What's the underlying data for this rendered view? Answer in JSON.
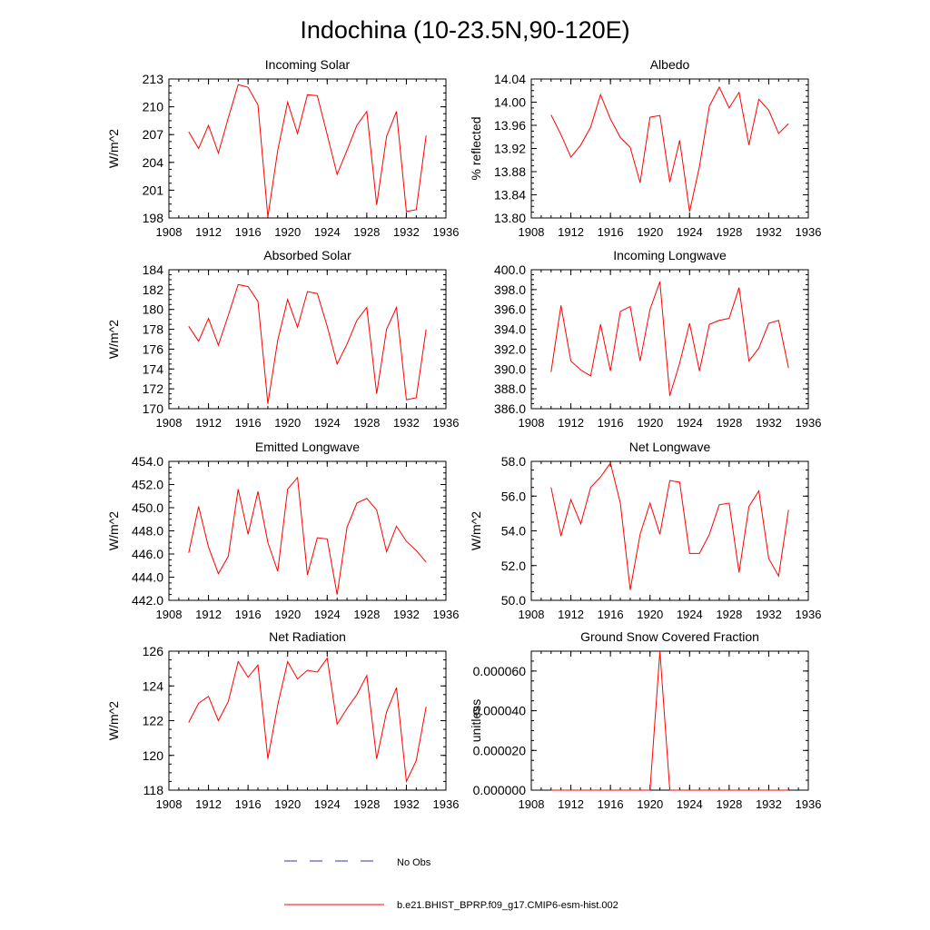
{
  "title": "Indochina (10-23.5N,90-120E)",
  "colors": {
    "model": "#ff0000",
    "obs": "#3333aa",
    "axis": "#000000"
  },
  "legend": [
    {
      "label": "No Obs",
      "style": "dashed",
      "color": "#3333aa"
    },
    {
      "label": "b.e21.BHIST_BPRP.f09_g17.CMIP6-esm-hist.002",
      "style": "solid",
      "color": "#ff0000"
    }
  ],
  "chart_data": [
    {
      "type": "line",
      "title": "Incoming Solar",
      "ylabel": "W/m^2",
      "xlim": [
        1908,
        1936
      ],
      "ylim": [
        198,
        213
      ],
      "xticks": [
        1908,
        1912,
        1916,
        1920,
        1924,
        1928,
        1932,
        1936
      ],
      "yticks": [
        198,
        201,
        204,
        207,
        210,
        213
      ],
      "ytick_labels": [
        "198",
        "201",
        "204",
        "207",
        "210",
        "213"
      ],
      "x": [
        1910,
        1911,
        1912,
        1913,
        1914,
        1915,
        1916,
        1917,
        1918,
        1919,
        1920,
        1921,
        1922,
        1923,
        1924,
        1925,
        1926,
        1927,
        1928,
        1929,
        1930,
        1931,
        1932,
        1933,
        1934
      ],
      "series": [
        {
          "name": "b.e21.BHIST_BPRP.f09_g17.CMIP6-esm-hist.002",
          "values": [
            207.3,
            205.5,
            208.0,
            205.0,
            208.8,
            212.4,
            212.1,
            210.2,
            198.1,
            205.3,
            210.5,
            207.1,
            211.3,
            211.2,
            207.0,
            202.7,
            205.3,
            208.0,
            209.5,
            199.4,
            206.8,
            209.5,
            198.7,
            198.9,
            206.9
          ]
        }
      ]
    },
    {
      "type": "line",
      "title": "Albedo",
      "ylabel": "% reflected",
      "xlim": [
        1908,
        1936
      ],
      "ylim": [
        13.8,
        14.04
      ],
      "xticks": [
        1908,
        1912,
        1916,
        1920,
        1924,
        1928,
        1932,
        1936
      ],
      "yticks": [
        13.8,
        13.84,
        13.88,
        13.92,
        13.96,
        14.0,
        14.04
      ],
      "ytick_labels": [
        "13.80",
        "13.84",
        "13.88",
        "13.92",
        "13.96",
        "14.00",
        "14.04"
      ],
      "x": [
        1910,
        1911,
        1912,
        1913,
        1914,
        1915,
        1916,
        1917,
        1918,
        1919,
        1920,
        1921,
        1922,
        1923,
        1924,
        1925,
        1926,
        1927,
        1928,
        1929,
        1930,
        1931,
        1932,
        1933,
        1934
      ],
      "series": [
        {
          "name": "b.e21.BHIST_BPRP.f09_g17.CMIP6-esm-hist.002",
          "values": [
            13.978,
            13.944,
            13.905,
            13.926,
            13.957,
            14.013,
            13.971,
            13.939,
            13.922,
            13.861,
            13.974,
            13.977,
            13.862,
            13.934,
            13.811,
            13.889,
            13.993,
            14.026,
            13.99,
            14.017,
            13.926,
            14.005,
            13.986,
            13.946,
            13.963
          ]
        }
      ]
    },
    {
      "type": "line",
      "title": "Absorbed Solar",
      "ylabel": "W/m^2",
      "xlim": [
        1908,
        1936
      ],
      "ylim": [
        170,
        184
      ],
      "xticks": [
        1908,
        1912,
        1916,
        1920,
        1924,
        1928,
        1932,
        1936
      ],
      "yticks": [
        170,
        172,
        174,
        176,
        178,
        180,
        182,
        184
      ],
      "ytick_labels": [
        "170",
        "172",
        "174",
        "176",
        "178",
        "180",
        "182",
        "184"
      ],
      "x": [
        1910,
        1911,
        1912,
        1913,
        1914,
        1915,
        1916,
        1917,
        1918,
        1919,
        1920,
        1921,
        1922,
        1923,
        1924,
        1925,
        1926,
        1927,
        1928,
        1929,
        1930,
        1931,
        1932,
        1933,
        1934
      ],
      "series": [
        {
          "name": "b.e21.BHIST_BPRP.f09_g17.CMIP6-esm-hist.002",
          "values": [
            178.3,
            176.8,
            179.1,
            176.4,
            179.4,
            182.5,
            182.3,
            180.8,
            170.5,
            176.9,
            181.0,
            178.2,
            181.8,
            181.6,
            178.3,
            174.5,
            176.5,
            178.9,
            180.2,
            171.5,
            178.0,
            180.2,
            170.9,
            171.1,
            178.0
          ]
        }
      ]
    },
    {
      "type": "line",
      "title": "Incoming Longwave",
      "ylabel": "",
      "xlim": [
        1908,
        1936
      ],
      "ylim": [
        386.0,
        400.0
      ],
      "xticks": [
        1908,
        1912,
        1916,
        1920,
        1924,
        1928,
        1932,
        1936
      ],
      "yticks": [
        386.0,
        388.0,
        390.0,
        392.0,
        394.0,
        396.0,
        398.0,
        400.0
      ],
      "ytick_labels": [
        "386.0",
        "388.0",
        "390.0",
        "392.0",
        "394.0",
        "396.0",
        "398.0",
        "400.0"
      ],
      "x": [
        1910,
        1911,
        1912,
        1913,
        1914,
        1915,
        1916,
        1917,
        1918,
        1919,
        1920,
        1921,
        1922,
        1923,
        1924,
        1925,
        1926,
        1927,
        1928,
        1929,
        1930,
        1931,
        1932,
        1933,
        1934
      ],
      "series": [
        {
          "name": "b.e21.BHIST_BPRP.f09_g17.CMIP6-esm-hist.002",
          "values": [
            389.7,
            396.4,
            390.8,
            389.9,
            389.3,
            394.5,
            389.8,
            395.8,
            396.3,
            390.8,
            396.0,
            398.8,
            387.3,
            390.6,
            394.6,
            389.8,
            394.5,
            394.9,
            395.1,
            398.2,
            390.8,
            392.1,
            394.6,
            394.9,
            390.1
          ]
        }
      ]
    },
    {
      "type": "line",
      "title": "Emitted Longwave",
      "ylabel": "W/m^2",
      "xlim": [
        1908,
        1936
      ],
      "ylim": [
        442.0,
        454.0
      ],
      "xticks": [
        1908,
        1912,
        1916,
        1920,
        1924,
        1928,
        1932,
        1936
      ],
      "yticks": [
        442.0,
        444.0,
        446.0,
        448.0,
        450.0,
        452.0,
        454.0
      ],
      "ytick_labels": [
        "442.0",
        "444.0",
        "446.0",
        "448.0",
        "450.0",
        "452.0",
        "454.0"
      ],
      "x": [
        1910,
        1911,
        1912,
        1913,
        1914,
        1915,
        1916,
        1917,
        1918,
        1919,
        1920,
        1921,
        1922,
        1923,
        1924,
        1925,
        1926,
        1927,
        1928,
        1929,
        1930,
        1931,
        1932,
        1933,
        1934
      ],
      "series": [
        {
          "name": "b.e21.BHIST_BPRP.f09_g17.CMIP6-esm-hist.002",
          "values": [
            446.1,
            450.1,
            446.6,
            444.3,
            445.8,
            451.6,
            447.7,
            451.4,
            447.0,
            444.5,
            451.6,
            452.6,
            444.2,
            447.4,
            447.3,
            442.5,
            448.3,
            450.4,
            450.8,
            449.8,
            446.2,
            448.4,
            447.1,
            446.3,
            445.3
          ]
        }
      ]
    },
    {
      "type": "line",
      "title": "Net Longwave",
      "ylabel": "W/m^2",
      "xlim": [
        1908,
        1936
      ],
      "ylim": [
        50.0,
        58.0
      ],
      "xticks": [
        1908,
        1912,
        1916,
        1920,
        1924,
        1928,
        1932,
        1936
      ],
      "yticks": [
        50.0,
        52.0,
        54.0,
        56.0,
        58.0
      ],
      "ytick_labels": [
        "50.0",
        "52.0",
        "54.0",
        "56.0",
        "58.0"
      ],
      "x": [
        1910,
        1911,
        1912,
        1913,
        1914,
        1915,
        1916,
        1917,
        1918,
        1919,
        1920,
        1921,
        1922,
        1923,
        1924,
        1925,
        1926,
        1927,
        1928,
        1929,
        1930,
        1931,
        1932,
        1933,
        1934
      ],
      "series": [
        {
          "name": "b.e21.BHIST_BPRP.f09_g17.CMIP6-esm-hist.002",
          "values": [
            56.5,
            53.7,
            55.8,
            54.4,
            56.5,
            57.1,
            57.9,
            55.6,
            50.6,
            53.8,
            55.6,
            53.8,
            56.9,
            56.8,
            52.7,
            52.7,
            53.8,
            55.5,
            55.6,
            51.6,
            55.4,
            56.3,
            52.4,
            51.4,
            55.2
          ]
        }
      ]
    },
    {
      "type": "line",
      "title": "Net Radiation",
      "ylabel": "W/m^2",
      "xlim": [
        1908,
        1936
      ],
      "ylim": [
        118,
        126
      ],
      "xticks": [
        1908,
        1912,
        1916,
        1920,
        1924,
        1928,
        1932,
        1936
      ],
      "yticks": [
        118,
        120,
        122,
        124,
        126
      ],
      "ytick_labels": [
        "118",
        "120",
        "122",
        "124",
        "126"
      ],
      "x": [
        1910,
        1911,
        1912,
        1913,
        1914,
        1915,
        1916,
        1917,
        1918,
        1919,
        1920,
        1921,
        1922,
        1923,
        1924,
        1925,
        1926,
        1927,
        1928,
        1929,
        1930,
        1931,
        1932,
        1933,
        1934
      ],
      "series": [
        {
          "name": "b.e21.BHIST_BPRP.f09_g17.CMIP6-esm-hist.002",
          "values": [
            121.9,
            123.0,
            123.4,
            122.0,
            123.1,
            125.4,
            124.5,
            125.2,
            119.8,
            122.9,
            125.4,
            124.4,
            124.9,
            124.8,
            125.6,
            121.8,
            122.7,
            123.5,
            124.6,
            119.8,
            122.5,
            123.9,
            118.5,
            119.7,
            122.8
          ]
        }
      ]
    },
    {
      "type": "line",
      "title": "Ground Snow Covered Fraction",
      "ylabel": "unitless",
      "xlim": [
        1908,
        1936
      ],
      "ylim": [
        0,
        7e-05
      ],
      "xticks": [
        1908,
        1912,
        1916,
        1920,
        1924,
        1928,
        1932,
        1936
      ],
      "yticks": [
        0,
        2e-05,
        4e-05,
        6e-05
      ],
      "ytick_labels": [
        "0.000000",
        "0.000020",
        "0.000040",
        "0.000060"
      ],
      "x": [
        1910,
        1911,
        1912,
        1913,
        1914,
        1915,
        1916,
        1917,
        1918,
        1919,
        1920,
        1921,
        1922,
        1923,
        1924,
        1925,
        1926,
        1927,
        1928,
        1929,
        1930,
        1931,
        1932,
        1933,
        1934
      ],
      "series": [
        {
          "name": "b.e21.BHIST_BPRP.f09_g17.CMIP6-esm-hist.002",
          "values": [
            0,
            0,
            0,
            0,
            0,
            0,
            0,
            0,
            0,
            0,
            0,
            7e-05,
            0,
            0,
            0,
            0,
            0,
            0,
            0,
            0,
            0,
            0,
            0,
            0,
            0
          ]
        }
      ]
    }
  ]
}
